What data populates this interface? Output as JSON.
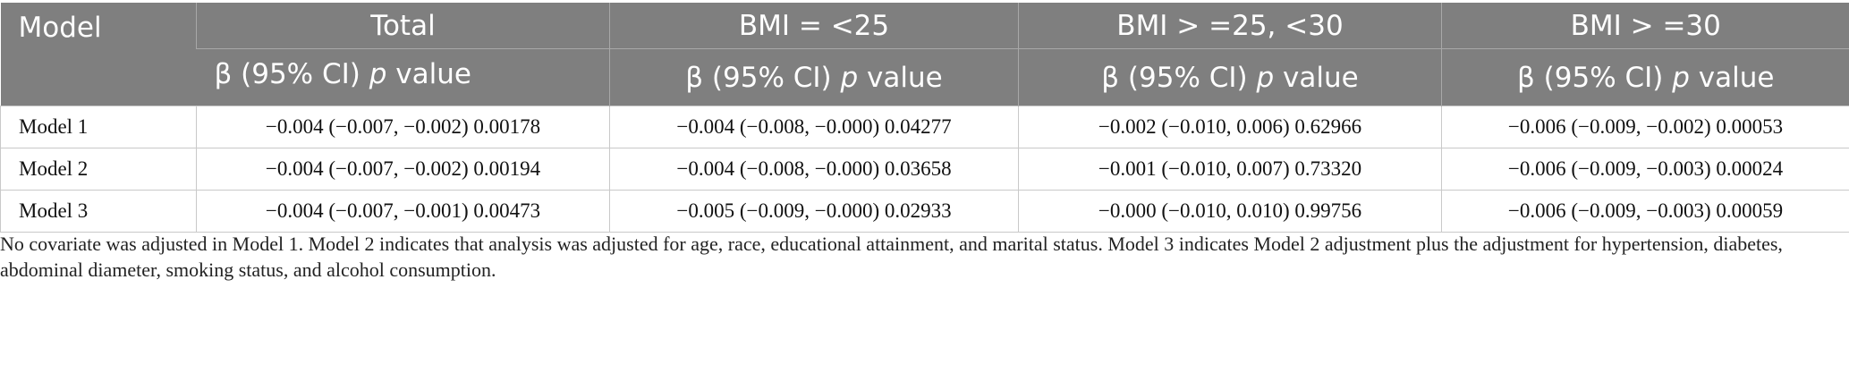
{
  "table": {
    "header": {
      "model_label": "Model",
      "groups": [
        "Total",
        "BMI = <25",
        "BMI > =25, <30",
        "BMI > =30"
      ],
      "sub_label_prefix": "β (95% CI) ",
      "sub_label_p": "p",
      "sub_label_suffix": " value"
    },
    "rows": [
      {
        "model": "Model 1",
        "cells": [
          "−0.004 (−0.007, −0.002) 0.00178",
          "−0.004 (−0.008, −0.000) 0.04277",
          "−0.002 (−0.010, 0.006) 0.62966",
          "−0.006 (−0.009, −0.002) 0.00053"
        ]
      },
      {
        "model": "Model 2",
        "cells": [
          "−0.004 (−0.007, −0.002) 0.00194",
          "−0.004 (−0.008, −0.000) 0.03658",
          "−0.001 (−0.010, 0.007) 0.73320",
          "−0.006 (−0.009, −0.003) 0.00024"
        ]
      },
      {
        "model": "Model 3",
        "cells": [
          "−0.004 (−0.007, −0.001) 0.00473",
          "−0.005 (−0.009, −0.000) 0.02933",
          "−0.000 (−0.010, 0.010) 0.99756",
          "−0.006 (−0.009, −0.003) 0.00059"
        ]
      }
    ]
  },
  "footnote": "No covariate was adjusted in Model 1. Model 2 indicates that analysis was adjusted for age, race, educational attainment, and marital status. Model 3 indicates Model 2 adjustment plus the adjustment for hypertension, diabetes, abdominal diameter, smoking status, and alcohol consumption.",
  "colors": {
    "header_bg": "#7f7f7f",
    "header_text": "#ffffff",
    "grid": "#c9c9c9"
  }
}
